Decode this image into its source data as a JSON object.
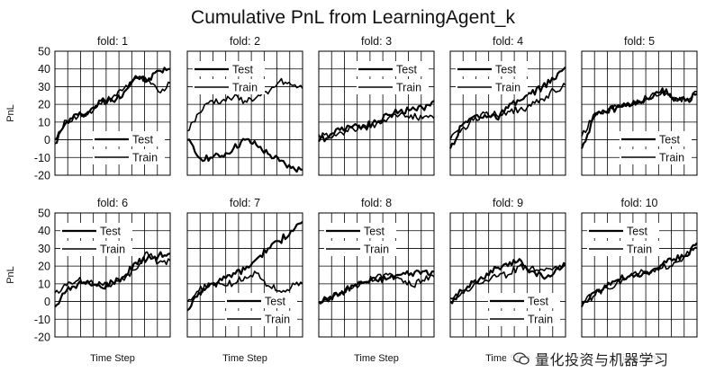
{
  "title": "Cumulative PnL from LearningAgent_k",
  "watermark": "量化投资与机器学习",
  "chart_data": {
    "type": "line",
    "layout": "2 rows x 5 columns small multiples",
    "ylabel": "PnL",
    "xlabel": "Time Step",
    "yticks": [
      50,
      40,
      30,
      20,
      10,
      0,
      -10,
      -20
    ],
    "ylim": [
      -20,
      50
    ],
    "grid": true,
    "line_color": "#000000",
    "panels": [
      {
        "title": "fold: 1",
        "legend": [
          "Test",
          "Train"
        ],
        "legend_position": "bottom-right",
        "series": [
          {
            "name": "Test",
            "x": [
              0,
              10,
              20,
              30,
              40,
              50,
              60,
              70,
              80,
              90,
              100
            ],
            "y": [
              -2,
              10,
              14,
              16,
              22,
              22,
              27,
              36,
              33,
              39,
              40
            ]
          },
          {
            "name": "Train",
            "x": [
              0,
              10,
              20,
              30,
              40,
              50,
              60,
              70,
              80,
              90,
              100
            ],
            "y": [
              0,
              11,
              13,
              16,
              20,
              24,
              29,
              35,
              33,
              27,
              32
            ]
          }
        ]
      },
      {
        "title": "fold: 2",
        "legend": [
          "Test",
          "Train"
        ],
        "legend_position": "top-left",
        "series": [
          {
            "name": "Test",
            "x": [
              0,
              10,
              20,
              30,
              40,
              50,
              60,
              70,
              80,
              90,
              100
            ],
            "y": [
              0,
              -10,
              -10,
              -9,
              -5,
              0,
              -3,
              -8,
              -12,
              -16,
              -17
            ]
          },
          {
            "name": "Train",
            "x": [
              0,
              10,
              20,
              30,
              40,
              50,
              60,
              70,
              80,
              90,
              100
            ],
            "y": [
              5,
              15,
              22,
              22,
              24,
              22,
              24,
              26,
              33,
              31,
              29
            ]
          }
        ]
      },
      {
        "title": "fold: 3",
        "legend": [
          "Test",
          "Train"
        ],
        "legend_position": "top-right",
        "series": [
          {
            "name": "Test",
            "x": [
              0,
              10,
              20,
              30,
              40,
              50,
              60,
              70,
              80,
              90,
              100
            ],
            "y": [
              -1,
              3,
              7,
              8,
              8,
              10,
              14,
              16,
              17,
              18,
              22
            ]
          },
          {
            "name": "Train",
            "x": [
              0,
              10,
              20,
              30,
              40,
              50,
              60,
              70,
              80,
              90,
              100
            ],
            "y": [
              3,
              1,
              4,
              6,
              7,
              9,
              12,
              14,
              14,
              12,
              12
            ]
          }
        ]
      },
      {
        "title": "fold: 4",
        "legend": [
          "Test",
          "Train"
        ],
        "legend_position": "top-left",
        "series": [
          {
            "name": "Test",
            "x": [
              0,
              10,
              20,
              30,
              40,
              50,
              60,
              70,
              80,
              90,
              100
            ],
            "y": [
              -5,
              8,
              13,
              14,
              12,
              18,
              22,
              26,
              30,
              34,
              41
            ]
          },
          {
            "name": "Train",
            "x": [
              0,
              10,
              20,
              30,
              40,
              50,
              60,
              70,
              80,
              90,
              100
            ],
            "y": [
              0,
              6,
              11,
              15,
              14,
              16,
              17,
              19,
              23,
              28,
              31
            ]
          }
        ]
      },
      {
        "title": "fold: 5",
        "legend": [
          "Test",
          "Train"
        ],
        "legend_position": "bottom-right",
        "series": [
          {
            "name": "Test",
            "x": [
              0,
              10,
              20,
              30,
              40,
              50,
              60,
              70,
              80,
              90,
              100
            ],
            "y": [
              -5,
              12,
              16,
              18,
              20,
              21,
              23,
              29,
              22,
              22,
              26
            ]
          },
          {
            "name": "Train",
            "x": [
              0,
              10,
              20,
              30,
              40,
              50,
              60,
              70,
              80,
              90,
              100
            ],
            "y": [
              2,
              14,
              16,
              19,
              21,
              22,
              25,
              27,
              24,
              22,
              27
            ]
          }
        ]
      },
      {
        "title": "fold: 6",
        "legend": [
          "Test",
          "Train"
        ],
        "legend_position": "top-left",
        "series": [
          {
            "name": "Test",
            "x": [
              0,
              10,
              20,
              30,
              40,
              50,
              60,
              70,
              80,
              90,
              100
            ],
            "y": [
              -3,
              6,
              10,
              10,
              8,
              11,
              14,
              22,
              24,
              26,
              27
            ]
          },
          {
            "name": "Train",
            "x": [
              0,
              10,
              20,
              30,
              40,
              50,
              60,
              70,
              80,
              90,
              100
            ],
            "y": [
              5,
              9,
              12,
              11,
              10,
              10,
              12,
              18,
              28,
              22,
              23
            ]
          }
        ]
      },
      {
        "title": "fold: 7",
        "legend": [
          "Test",
          "Train"
        ],
        "legend_position": "bottom-right",
        "series": [
          {
            "name": "Test",
            "x": [
              0,
              10,
              20,
              30,
              40,
              50,
              60,
              70,
              80,
              90,
              100
            ],
            "y": [
              -5,
              5,
              10,
              12,
              16,
              18,
              24,
              30,
              34,
              40,
              45
            ]
          },
          {
            "name": "Train",
            "x": [
              0,
              10,
              20,
              30,
              40,
              50,
              60,
              70,
              80,
              90,
              100
            ],
            "y": [
              0,
              6,
              10,
              10,
              10,
              14,
              16,
              9,
              6,
              8,
              10
            ]
          }
        ]
      },
      {
        "title": "fold: 8",
        "legend": [
          "Test",
          "Train"
        ],
        "legend_position": "top-left",
        "series": [
          {
            "name": "Test",
            "x": [
              0,
              10,
              20,
              30,
              40,
              50,
              60,
              70,
              80,
              90,
              100
            ],
            "y": [
              0,
              2,
              5,
              9,
              11,
              12,
              13,
              15,
              16,
              17,
              17
            ]
          },
          {
            "name": "Train",
            "x": [
              0,
              10,
              20,
              30,
              40,
              50,
              60,
              70,
              80,
              90,
              100
            ],
            "y": [
              -1,
              3,
              6,
              8,
              11,
              14,
              15,
              13,
              9,
              12,
              14
            ]
          }
        ]
      },
      {
        "title": "fold: 9",
        "legend": [
          "Test",
          "Train"
        ],
        "legend_position": "bottom-right",
        "series": [
          {
            "name": "Test",
            "x": [
              0,
              10,
              20,
              30,
              40,
              50,
              60,
              70,
              80,
              90,
              100
            ],
            "y": [
              0,
              6,
              11,
              13,
              19,
              20,
              24,
              17,
              14,
              16,
              21
            ]
          },
          {
            "name": "Train",
            "x": [
              0,
              10,
              20,
              30,
              40,
              50,
              60,
              70,
              80,
              90,
              100
            ],
            "y": [
              2,
              5,
              9,
              12,
              14,
              15,
              20,
              19,
              18,
              19,
              21
            ]
          }
        ]
      },
      {
        "title": "fold: 10",
        "legend": [
          "Test",
          "Train"
        ],
        "legend_position": "top-left",
        "series": [
          {
            "name": "Test",
            "x": [
              0,
              10,
              20,
              30,
              40,
              50,
              60,
              70,
              80,
              90,
              100
            ],
            "y": [
              -3,
              5,
              9,
              12,
              14,
              14,
              17,
              21,
              24,
              26,
              33
            ]
          },
          {
            "name": "Train",
            "x": [
              0,
              10,
              20,
              30,
              40,
              50,
              60,
              70,
              80,
              90,
              100
            ],
            "y": [
              0,
              3,
              8,
              10,
              14,
              16,
              16,
              19,
              22,
              26,
              30
            ]
          }
        ]
      }
    ]
  }
}
